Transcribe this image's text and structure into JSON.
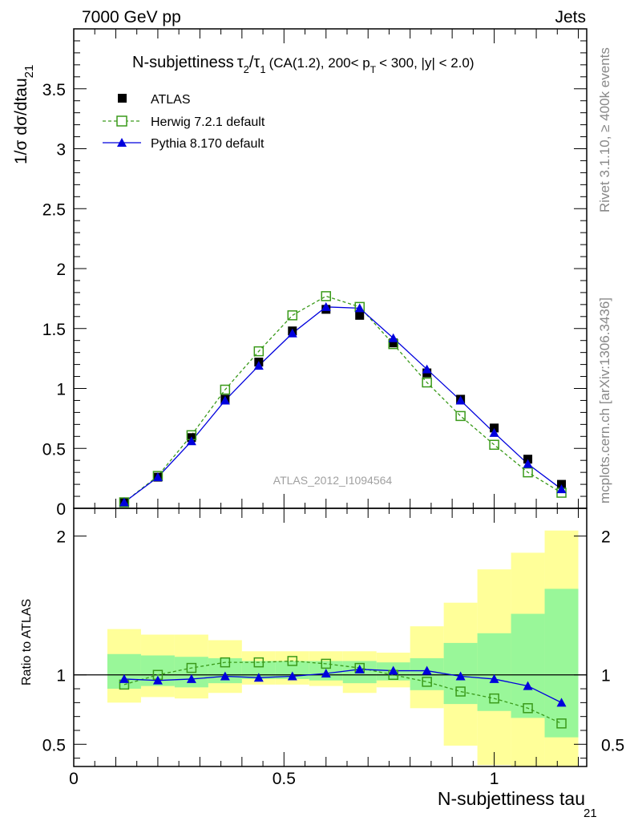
{
  "header": {
    "left": "7000 GeV pp",
    "right": "Jets"
  },
  "side_labels": {
    "rivet": "Rivet 3.1.10, ≥ 400k events",
    "mcplots": "mcplots.cern.ch [arXiv:1306.3436]"
  },
  "colors": {
    "data": "#000000",
    "herwig": "#3a9a1a",
    "pythia": "#0000dd",
    "band_inner": "#99f799",
    "band_outer": "#ffff99"
  },
  "chart_data": [
    {
      "type": "line",
      "title_main": "N-subjettiness",
      "title_tau2": "τ",
      "title_sub2": "2",
      "title_slash": "/",
      "title_tau1": "τ",
      "title_sub1": "1",
      "title_rest1": "(CA(1.2), 200< p",
      "title_subT": "T",
      "title_rest2": "< 300, |y| < 2.0)",
      "ylabel_main": "1/σ dσ/dtau",
      "ylabel_sub": "21",
      "annotation": "ATLAS_2012_I1094564",
      "ylim": [
        0,
        4.0
      ],
      "yticks": [
        "0",
        "0.5",
        "1",
        "1.5",
        "2",
        "2.5",
        "3",
        "3.5"
      ],
      "ytick_values": [
        0,
        0.5,
        1,
        1.5,
        2,
        2.5,
        3,
        3.5
      ],
      "xlim": [
        0,
        1.22
      ],
      "x": [
        0.12,
        0.2,
        0.28,
        0.36,
        0.44,
        0.52,
        0.6,
        0.68,
        0.76,
        0.84,
        0.92,
        1.0,
        1.08,
        1.16
      ],
      "series": [
        {
          "name": "ATLAS",
          "style": "square-filled",
          "values": [
            0.05,
            0.26,
            0.59,
            0.91,
            1.22,
            1.48,
            1.66,
            1.61,
            1.38,
            1.13,
            0.91,
            0.67,
            0.41,
            0.2
          ]
        },
        {
          "name": "Herwig 7.2.1 default",
          "style": "square-open-dashed",
          "values": [
            0.05,
            0.27,
            0.61,
            0.99,
            1.31,
            1.61,
            1.77,
            1.68,
            1.37,
            1.05,
            0.77,
            0.53,
            0.3,
            0.13
          ]
        },
        {
          "name": "Pythia 8.170 default",
          "style": "triangle-filled",
          "values": [
            0.05,
            0.26,
            0.56,
            0.9,
            1.19,
            1.46,
            1.68,
            1.67,
            1.42,
            1.16,
            0.9,
            0.63,
            0.37,
            0.16
          ]
        }
      ]
    },
    {
      "type": "line",
      "ylabel": "Ratio to ATLAS",
      "ylim": [
        0.34,
        2.2
      ],
      "yticks": [
        "0.5",
        "1",
        "2"
      ],
      "ytick_values": [
        0.5,
        1,
        2
      ],
      "xlabel_main": "N-subjettiness tau",
      "xlabel_sub": "21",
      "xticks": [
        "0",
        "0.5",
        "1"
      ],
      "xtick_values": [
        0,
        0.5,
        1
      ],
      "xlim": [
        0,
        1.22
      ],
      "reference_line": 1,
      "bin_edges": [
        0.08,
        0.16,
        0.24,
        0.32,
        0.4,
        0.48,
        0.56,
        0.64,
        0.72,
        0.8,
        0.88,
        0.96,
        1.04,
        1.12,
        1.2
      ],
      "band_inner": [
        [
          0.9,
          1.15
        ],
        [
          0.92,
          1.14
        ],
        [
          0.91,
          1.13
        ],
        [
          0.94,
          1.12
        ],
        [
          0.97,
          1.1
        ],
        [
          0.97,
          1.1
        ],
        [
          0.96,
          1.1
        ],
        [
          0.94,
          1.1
        ],
        [
          0.96,
          1.09
        ],
        [
          0.89,
          1.12
        ],
        [
          0.79,
          1.23
        ],
        [
          0.74,
          1.3
        ],
        [
          0.69,
          1.44
        ],
        [
          0.55,
          1.62
        ]
      ],
      "band_outer": [
        [
          0.8,
          1.33
        ],
        [
          0.84,
          1.29
        ],
        [
          0.83,
          1.29
        ],
        [
          0.87,
          1.25
        ],
        [
          0.93,
          1.17
        ],
        [
          0.93,
          1.17
        ],
        [
          0.92,
          1.17
        ],
        [
          0.87,
          1.17
        ],
        [
          0.91,
          1.16
        ],
        [
          0.76,
          1.35
        ],
        [
          0.49,
          1.52
        ],
        [
          0.35,
          1.76
        ],
        [
          0.34,
          1.88
        ],
        [
          0.34,
          2.04
        ]
      ],
      "series": [
        {
          "name": "Herwig 7.2.1 default",
          "style": "square-open-dashed",
          "values": [
            0.93,
            1.0,
            1.05,
            1.09,
            1.09,
            1.1,
            1.08,
            1.05,
            1.0,
            0.95,
            0.88,
            0.83,
            0.76,
            0.65
          ]
        },
        {
          "name": "Pythia 8.170 default",
          "style": "triangle-filled",
          "values": [
            0.97,
            0.96,
            0.97,
            0.99,
            0.98,
            0.99,
            1.01,
            1.04,
            1.03,
            1.03,
            0.99,
            0.97,
            0.92,
            0.8
          ]
        }
      ]
    }
  ]
}
